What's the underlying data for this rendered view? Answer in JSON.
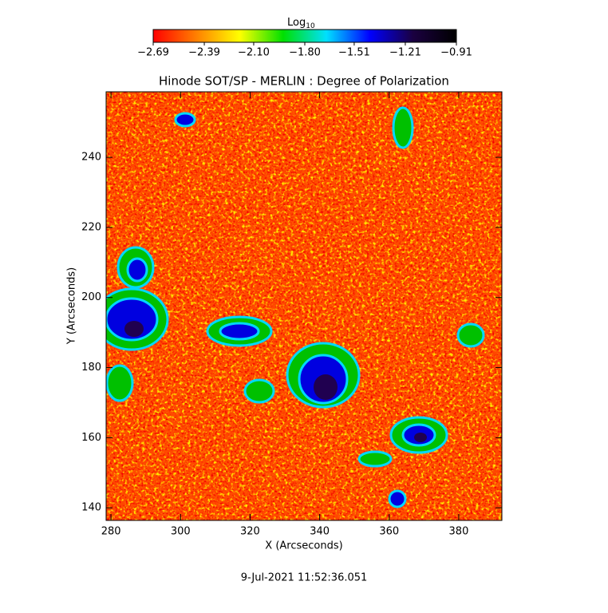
{
  "chart_data": {
    "type": "heatmap",
    "title": "Hinode SOT/SP - MERLIN : Degree of Polarization",
    "x_label": "X (Arcseconds)",
    "y_label": "Y (Arcseconds)",
    "xlim": [
      278.6,
      392.4
    ],
    "ylim": [
      136.4,
      258.7
    ],
    "xticks": [
      280,
      300,
      320,
      340,
      360,
      380
    ],
    "yticks": [
      140,
      160,
      180,
      200,
      220,
      240
    ],
    "colorbar": {
      "label": "Log",
      "label_subscript": "10",
      "lim": [
        -2.69,
        -0.91
      ],
      "colors": [
        "#ff0000",
        "#ff8000",
        "#ffff00",
        "#00e000",
        "#00e0ff",
        "#0000ff",
        "#1a0040",
        "#000000"
      ],
      "ticks": [
        {
          "value": -2.69,
          "label": "−2.69"
        },
        {
          "value": -2.39,
          "label": "−2.39"
        },
        {
          "value": -2.1,
          "label": "−2.10"
        },
        {
          "value": -1.8,
          "label": "−1.80"
        },
        {
          "value": -1.51,
          "label": "−1.51"
        },
        {
          "value": -1.21,
          "label": "−1.21"
        },
        {
          "value": -0.91,
          "label": "−0.91"
        }
      ]
    },
    "footer": "9-Jul-2021 11:52:36.051"
  }
}
